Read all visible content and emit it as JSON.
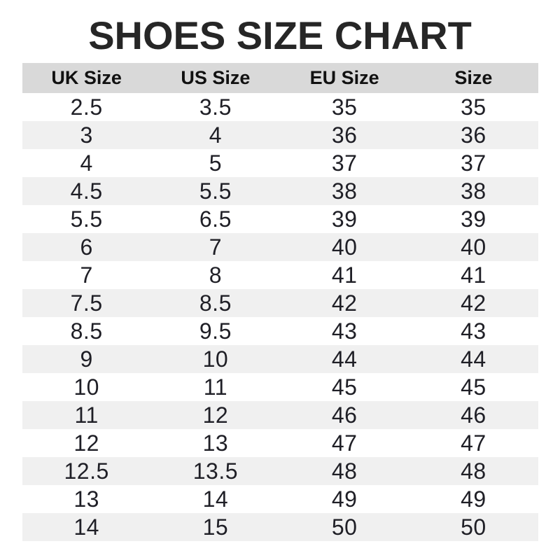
{
  "title": "SHOES SIZE CHART",
  "chart_data": {
    "type": "table",
    "title": "SHOES SIZE CHART",
    "columns": [
      "UK Size",
      "US Size",
      "EU Size",
      "Size"
    ],
    "rows": [
      [
        "2.5",
        "3.5",
        "35",
        "35"
      ],
      [
        "3",
        "4",
        "36",
        "36"
      ],
      [
        "4",
        "5",
        "37",
        "37"
      ],
      [
        "4.5",
        "5.5",
        "38",
        "38"
      ],
      [
        "5.5",
        "6.5",
        "39",
        "39"
      ],
      [
        "6",
        "7",
        "40",
        "40"
      ],
      [
        "7",
        "8",
        "41",
        "41"
      ],
      [
        "7.5",
        "8.5",
        "42",
        "42"
      ],
      [
        "8.5",
        "9.5",
        "43",
        "43"
      ],
      [
        "9",
        "10",
        "44",
        "44"
      ],
      [
        "10",
        "11",
        "45",
        "45"
      ],
      [
        "11",
        "12",
        "46",
        "46"
      ],
      [
        "12",
        "13",
        "47",
        "47"
      ],
      [
        "12.5",
        "13.5",
        "48",
        "48"
      ],
      [
        "13",
        "14",
        "49",
        "49"
      ],
      [
        "14",
        "15",
        "50",
        "50"
      ]
    ],
    "layout": {
      "zebra_striping": true,
      "first_data_row_background": "white",
      "header_position": "top"
    },
    "colors": {
      "header_bg": "#d9d9d9",
      "row_alt_bg": "#f0f0f0",
      "row_bg": "#ffffff",
      "text": "#1f1f26",
      "title": "#262626"
    }
  }
}
